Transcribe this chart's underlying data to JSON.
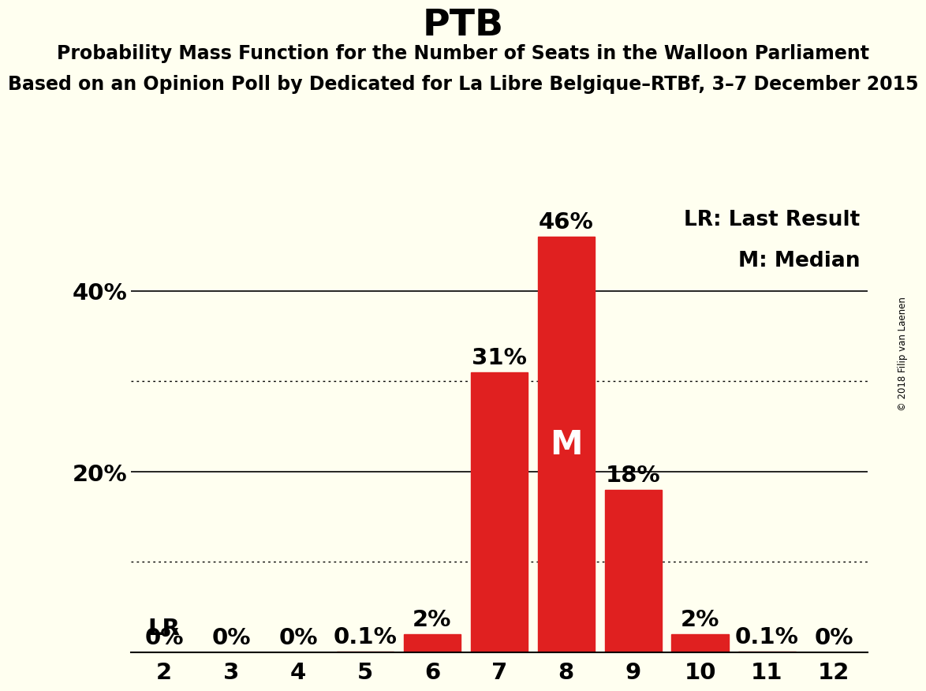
{
  "title": "PTB",
  "subtitle1": "Probability Mass Function for the Number of Seats in the Walloon Parliament",
  "subtitle2": "Based on an Opinion Poll by Dedicated for La Libre Belgique–RTBf, 3–7 December 2015",
  "copyright": "© 2018 Filip van Laenen",
  "categories": [
    2,
    3,
    4,
    5,
    6,
    7,
    8,
    9,
    10,
    11,
    12
  ],
  "values": [
    0.0,
    0.0,
    0.0,
    0.1,
    2.0,
    31.0,
    46.0,
    18.0,
    2.0,
    0.1,
    0.0
  ],
  "bar_labels": [
    "0%",
    "0%",
    "0%",
    "0.1%",
    "2%",
    "31%",
    "46%",
    "18%",
    "2%",
    "0.1%",
    "0%"
  ],
  "bar_color": "#e02020",
  "background_color": "#fffff0",
  "median_bar_idx": 6,
  "median_label": "M",
  "lr_label": "LR",
  "legend_lr": "LR: Last Result",
  "legend_m": "M: Median",
  "ylim": [
    0,
    50
  ],
  "solid_gridlines": [
    20.0,
    40.0
  ],
  "dotted_gridlines": [
    10.0,
    30.0
  ],
  "title_fontsize": 34,
  "subtitle_fontsize": 17,
  "bar_label_fontsize": 21,
  "tick_fontsize": 21,
  "legend_fontsize": 19,
  "lr_fontsize": 21,
  "median_fontsize": 30
}
